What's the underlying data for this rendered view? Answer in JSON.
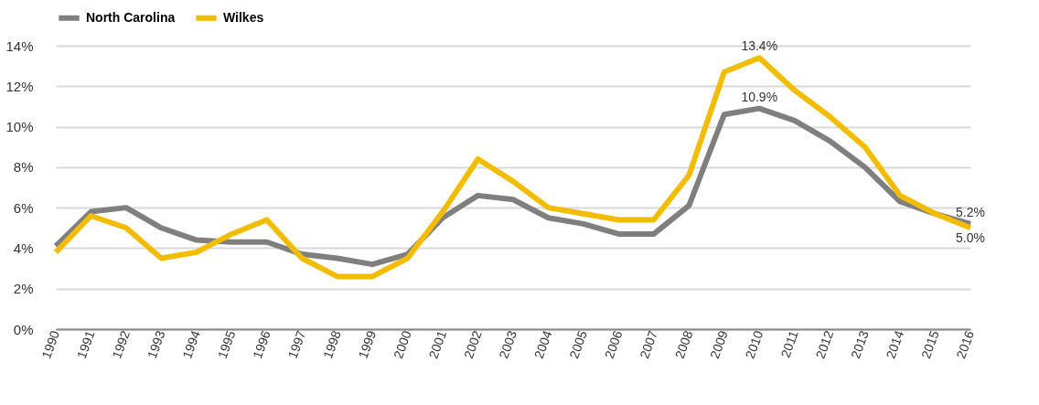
{
  "chart_data": {
    "type": "line",
    "categories": [
      "1990",
      "1991",
      "1992",
      "1993",
      "1994",
      "1995",
      "1996",
      "1997",
      "1998",
      "1999",
      "2000",
      "2001",
      "2002",
      "2003",
      "2004",
      "2005",
      "2006",
      "2007",
      "2008",
      "2009",
      "2010",
      "2011",
      "2012",
      "2013",
      "2014",
      "2015",
      "2016"
    ],
    "series": [
      {
        "name": "North Carolina",
        "color": "#7f7f7f",
        "values": [
          4.1,
          5.8,
          6.0,
          5.0,
          4.4,
          4.3,
          4.3,
          3.7,
          3.5,
          3.2,
          3.7,
          5.5,
          6.6,
          6.4,
          5.5,
          5.2,
          4.7,
          4.7,
          6.1,
          10.6,
          10.9,
          10.3,
          9.3,
          8.0,
          6.3,
          5.7,
          5.2
        ],
        "value_labels": [
          null,
          null,
          null,
          null,
          null,
          null,
          null,
          null,
          null,
          null,
          null,
          null,
          null,
          null,
          null,
          null,
          null,
          null,
          null,
          null,
          "10.9%",
          null,
          null,
          null,
          null,
          null,
          "5.2%"
        ]
      },
      {
        "name": "Wilkes",
        "color": "#f2bd00",
        "values": [
          3.8,
          5.6,
          5.0,
          3.5,
          3.8,
          4.7,
          5.4,
          3.5,
          2.6,
          2.6,
          3.5,
          5.8,
          8.4,
          7.3,
          6.0,
          5.7,
          5.4,
          5.4,
          7.6,
          12.7,
          13.4,
          11.8,
          10.5,
          9.0,
          6.6,
          5.7,
          5.0
        ],
        "value_labels": [
          null,
          null,
          null,
          null,
          null,
          null,
          null,
          null,
          null,
          null,
          null,
          null,
          null,
          null,
          null,
          null,
          null,
          null,
          null,
          null,
          "13.4%",
          null,
          null,
          null,
          null,
          null,
          "5.0%"
        ]
      }
    ],
    "ylim": [
      0,
      14
    ],
    "yticks": [
      {
        "value": 0,
        "label": "0%"
      },
      {
        "value": 2,
        "label": "2%"
      },
      {
        "value": 4,
        "label": "4%"
      },
      {
        "value": 6,
        "label": "6%"
      },
      {
        "value": 8,
        "label": "8%"
      },
      {
        "value": 10,
        "label": "10%"
      },
      {
        "value": 12,
        "label": "12%"
      },
      {
        "value": 14,
        "label": "14%"
      }
    ],
    "grid": "y",
    "legend": "top",
    "line_style": "solid",
    "marker": "none"
  }
}
